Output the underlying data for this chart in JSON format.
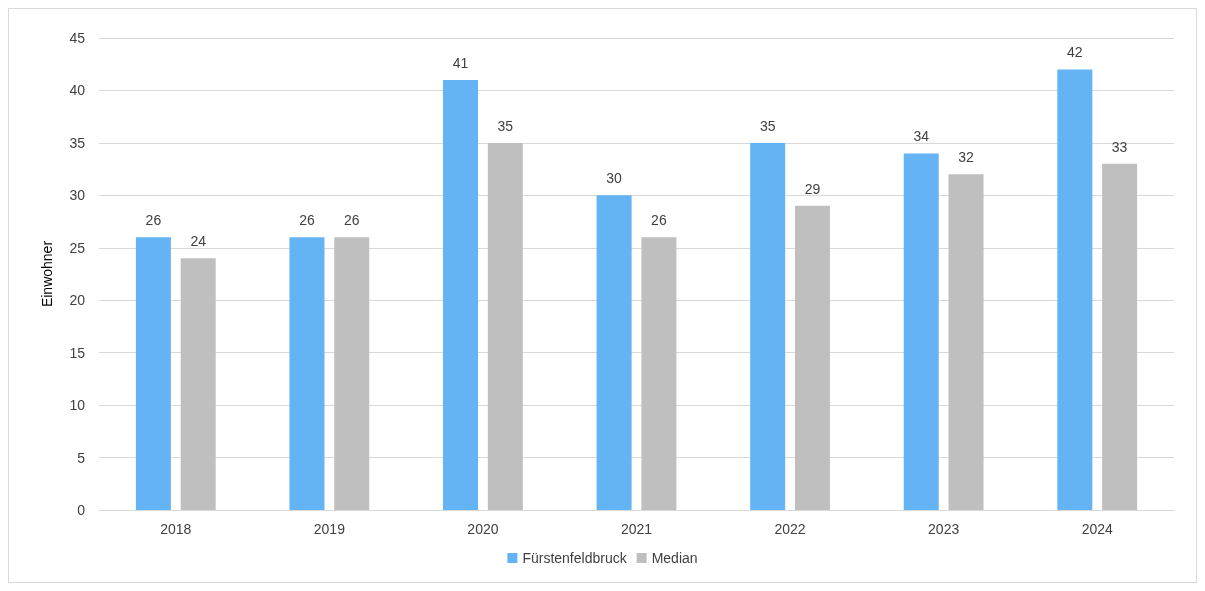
{
  "chart_data": {
    "type": "bar",
    "ylabel": "Einwohner",
    "categories": [
      "2018",
      "2019",
      "2020",
      "2021",
      "2022",
      "2023",
      "2024"
    ],
    "series": [
      {
        "name": "Fürstenfeldbruck",
        "color": "#63b3f5",
        "values": [
          26,
          26,
          41,
          30,
          35,
          34,
          42
        ]
      },
      {
        "name": "Median",
        "color": "#bfbfbf",
        "values": [
          24,
          26,
          35,
          26,
          29,
          32,
          33
        ]
      }
    ],
    "ylim": [
      0,
      45
    ],
    "yticks": [
      0,
      5,
      10,
      15,
      20,
      25,
      30,
      35,
      40,
      45
    ],
    "grid": "y",
    "legend": "bottom",
    "data_labels": true
  }
}
